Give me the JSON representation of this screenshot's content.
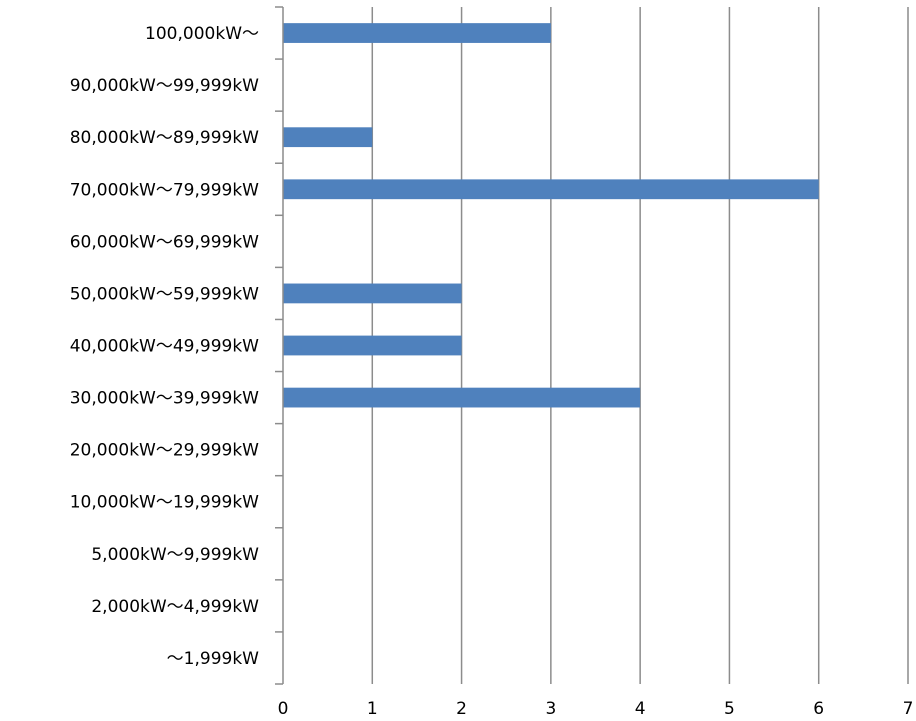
{
  "chart_data": {
    "type": "bar",
    "orientation": "horizontal",
    "categories": [
      "〜1,999kW",
      "2,000kW〜4,999kW",
      "5,000kW〜9,999kW",
      "10,000kW〜19,999kW",
      "20,000kW〜29,999kW",
      "30,000kW〜39,999kW",
      "40,000kW〜49,999kW",
      "50,000kW〜59,999kW",
      "60,000kW〜69,999kW",
      "70,000kW〜79,999kW",
      "80,000kW〜89,999kW",
      "90,000kW〜99,999kW",
      "100,000kW〜"
    ],
    "values": [
      0,
      0,
      0,
      0,
      0,
      4,
      2,
      2,
      0,
      6,
      1,
      0,
      3
    ],
    "xlim": [
      0,
      7
    ],
    "xticks": [
      "0",
      "1",
      "2",
      "3",
      "4",
      "5",
      "6",
      "7"
    ],
    "grid": "vertical",
    "bar_color": "#4f81bd",
    "grid_color": "#8c8c8c"
  }
}
